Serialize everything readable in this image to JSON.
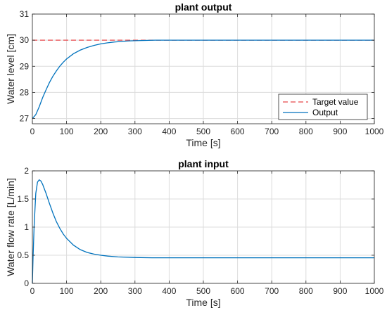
{
  "chart_data": [
    {
      "type": "line",
      "title": "plant output",
      "xlabel": "Time [s]",
      "ylabel": "Water level  [cm]",
      "xlim": [
        0,
        1000
      ],
      "ylim": [
        26.8,
        31
      ],
      "xticks": [
        0,
        100,
        200,
        300,
        400,
        500,
        600,
        700,
        800,
        900,
        1000
      ],
      "yticks": [
        27,
        28,
        29,
        30,
        31
      ],
      "grid": true,
      "legend_position": "bottom-right",
      "series": [
        {
          "name": "Target value",
          "style": "dashed",
          "color": "#e8474a",
          "x": [
            0,
            1000
          ],
          "y": [
            30,
            30
          ]
        },
        {
          "name": "Output",
          "style": "solid",
          "color": "#0072bd",
          "x": [
            0,
            10,
            20,
            30,
            40,
            50,
            60,
            70,
            80,
            90,
            100,
            120,
            140,
            160,
            180,
            200,
            220,
            240,
            260,
            280,
            300,
            330,
            360,
            400,
            500,
            600,
            700,
            800,
            900,
            1000
          ],
          "y": [
            27.0,
            27.15,
            27.45,
            27.8,
            28.1,
            28.38,
            28.62,
            28.82,
            29.0,
            29.15,
            29.28,
            29.48,
            29.62,
            29.72,
            29.8,
            29.86,
            29.9,
            29.93,
            29.95,
            29.97,
            29.98,
            29.99,
            30.0,
            30.0,
            30.0,
            30.0,
            30.0,
            30.0,
            30.0,
            30.0
          ]
        }
      ]
    },
    {
      "type": "line",
      "title": "plant input",
      "xlabel": "Time [s]",
      "ylabel": "Water flow rate [L/min]",
      "xlim": [
        0,
        1000
      ],
      "ylim": [
        0,
        2
      ],
      "xticks": [
        0,
        100,
        200,
        300,
        400,
        500,
        600,
        700,
        800,
        900,
        1000
      ],
      "yticks": [
        0,
        0.5,
        1,
        1.5,
        2
      ],
      "grid": true,
      "series": [
        {
          "name": "",
          "style": "solid",
          "color": "#0072bd",
          "x": [
            0,
            2,
            5,
            10,
            15,
            20,
            25,
            30,
            40,
            50,
            60,
            70,
            80,
            90,
            100,
            120,
            140,
            160,
            180,
            200,
            220,
            250,
            300,
            350,
            400,
            500,
            600,
            700,
            800,
            900,
            1000
          ],
          "y": [
            0.0,
            0.45,
            1.0,
            1.6,
            1.8,
            1.84,
            1.82,
            1.76,
            1.6,
            1.42,
            1.25,
            1.1,
            0.98,
            0.88,
            0.8,
            0.68,
            0.6,
            0.55,
            0.52,
            0.5,
            0.485,
            0.47,
            0.46,
            0.455,
            0.455,
            0.455,
            0.455,
            0.455,
            0.455,
            0.455,
            0.455
          ]
        }
      ]
    }
  ]
}
